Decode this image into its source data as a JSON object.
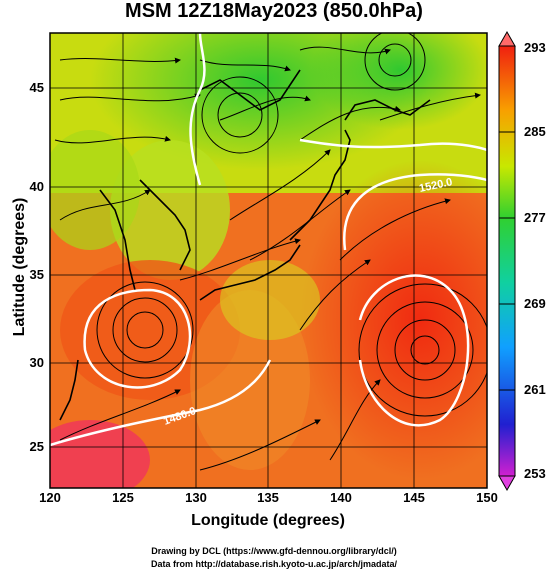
{
  "title": "MSM 12Z18May2023 (850.0hPa)",
  "xlabel": "Longitude (degrees)",
  "ylabel": "Latitude  (degrees)",
  "x_ticks": [
    "120",
    "125",
    "130",
    "135",
    "140",
    "145",
    "150"
  ],
  "y_ticks": [
    "25",
    "30",
    "35",
    "40",
    "45"
  ],
  "colorbar_ticks": [
    "293",
    "285",
    "277",
    "269",
    "261",
    "253"
  ],
  "contour_labels": [
    "1520.0",
    "1480.0"
  ],
  "credit_line1": "Drawing by DCL (https://www.gfd-dennou.org/library/dcl/)",
  "credit_line2": "Data from http://database.rish.kyoto-u.ac.jp/arch/jmadata/",
  "colors": {
    "warm": "#f03a10",
    "mid": "#d8e800",
    "cool": "#40d040",
    "cold": "#1010c0",
    "top_arrow": "#ff6a6a",
    "bottom_arrow": "#e040e0"
  }
}
